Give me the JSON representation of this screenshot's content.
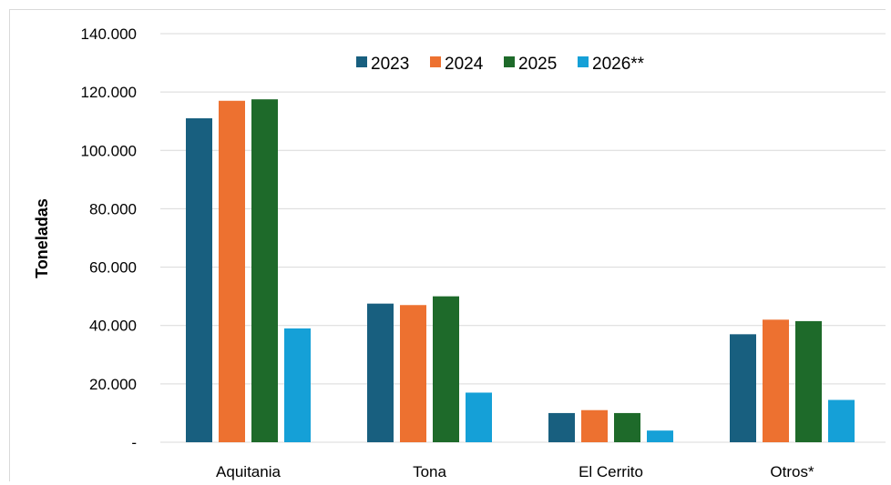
{
  "chart_data": {
    "type": "bar",
    "title": "",
    "xlabel": "",
    "ylabel": "Toneladas",
    "ylim": [
      0,
      140000
    ],
    "yticks": [
      0,
      20000,
      40000,
      60000,
      80000,
      100000,
      120000,
      140000
    ],
    "ytick_labels": [
      "-",
      "20.000",
      "40.000",
      "60.000",
      "80.000",
      "100.000",
      "120.000",
      "140.000"
    ],
    "grid": true,
    "legend_position": "top-center",
    "categories": [
      "Aquitania",
      "Tona",
      "El Cerrito",
      "Otros*"
    ],
    "series": [
      {
        "name": "2023",
        "color": "#185f7f",
        "values": [
          111000,
          47500,
          10000,
          37000
        ]
      },
      {
        "name": "2024",
        "color": "#ed7130",
        "values": [
          117000,
          47000,
          11000,
          42000
        ]
      },
      {
        "name": "2025",
        "color": "#1e6a2a",
        "values": [
          117500,
          50000,
          10000,
          41500
        ]
      },
      {
        "name": "2026**",
        "color": "#15a0d7",
        "values": [
          39000,
          17000,
          4000,
          14500
        ]
      }
    ]
  }
}
